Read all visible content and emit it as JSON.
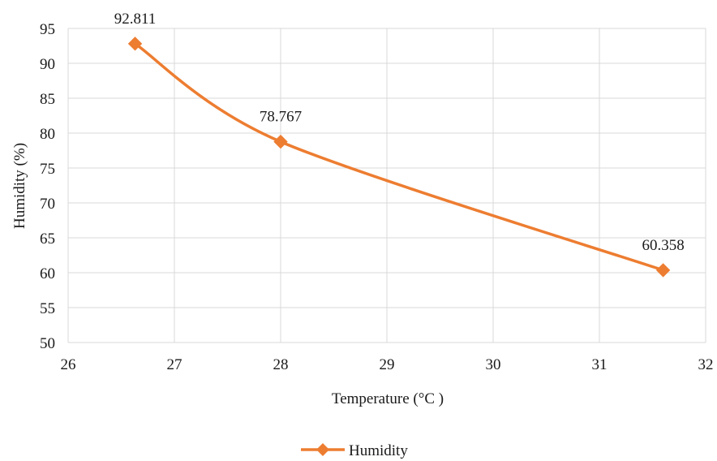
{
  "chart_data": {
    "type": "line",
    "title": "",
    "xlabel": "Temperature (°C )",
    "ylabel": "Humidity (%)",
    "xlim": [
      26,
      32
    ],
    "ylim": [
      50,
      95
    ],
    "x_ticks": [
      26,
      27,
      28,
      29,
      30,
      31,
      32
    ],
    "y_ticks": [
      50,
      55,
      60,
      65,
      70,
      75,
      80,
      85,
      90,
      95
    ],
    "grid": true,
    "smooth": true,
    "legend_position": "bottom",
    "series": [
      {
        "name": "Humidity",
        "color": "#ED7D31",
        "marker": "diamond",
        "x": [
          26.63,
          28.0,
          31.6
        ],
        "y": [
          92.811,
          78.767,
          60.358
        ],
        "labels": [
          "92.811",
          "78.767",
          "60.358"
        ]
      }
    ]
  }
}
